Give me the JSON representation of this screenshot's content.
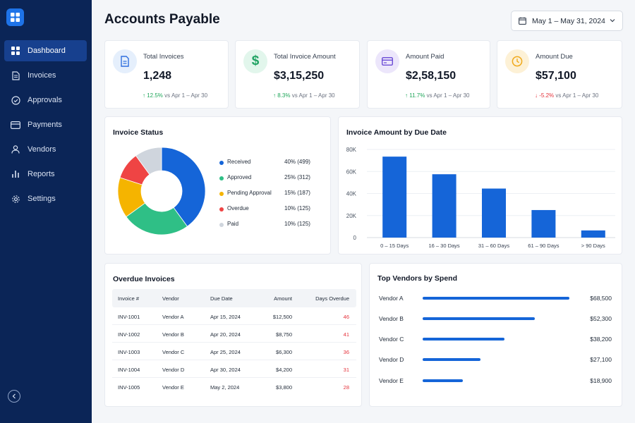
{
  "sidebar": {
    "items": [
      {
        "label": "Dashboard",
        "icon": "dashboard-grid-icon",
        "active": true
      },
      {
        "label": "Invoices",
        "icon": "invoice-icon"
      },
      {
        "label": "Approvals",
        "icon": "check-circle-icon"
      },
      {
        "label": "Payments",
        "icon": "credit-card-icon"
      },
      {
        "label": "Vendors",
        "icon": "user-icon"
      },
      {
        "label": "Reports",
        "icon": "bar-chart-icon"
      },
      {
        "label": "Settings",
        "icon": "gear-icon"
      }
    ]
  },
  "header": {
    "title": "Accounts Payable",
    "date_range": "May 1 – May 31, 2024"
  },
  "kpis": [
    {
      "label": "Total Invoices",
      "value": "1,248",
      "delta": "12.5%",
      "direction": "up",
      "comparison": "vs Apr 1 – Apr 30",
      "icon": "document-icon",
      "color": "#2f6fde"
    },
    {
      "label": "Total Invoice Amount",
      "value": "$3,15,250",
      "delta": "8.3%",
      "direction": "up",
      "comparison": "vs Apr 1 – Apr 30",
      "icon": "dollar-icon",
      "color": "#21a363"
    },
    {
      "label": "Amount Paid",
      "value": "$2,58,150",
      "delta": "11.7%",
      "direction": "up",
      "comparison": "vs Apr 1 – Apr 30",
      "icon": "credit-card-icon",
      "color": "#6c4cd6"
    },
    {
      "label": "Amount Due",
      "value": "$57,100",
      "delta": "-5.2%",
      "direction": "down",
      "comparison": "vs Apr 1 – Apr 30",
      "icon": "clock-icon",
      "color": "#f0a91a"
    }
  ],
  "invoice_status": {
    "title": "Invoice Status",
    "items": [
      {
        "label": "Received",
        "pct": "40%",
        "count": "(499)",
        "color": "#1565d8"
      },
      {
        "label": "Approved",
        "pct": "25%",
        "count": "(312)",
        "color": "#2fbf86"
      },
      {
        "label": "Pending Approval",
        "pct": "15%",
        "count": "(187)",
        "color": "#f5b400"
      },
      {
        "label": "Overdue",
        "pct": "10%",
        "count": "(125)",
        "color": "#ef4444"
      },
      {
        "label": "Paid",
        "pct": "10%",
        "count": "(125)",
        "color": "#cfd5dd"
      }
    ]
  },
  "chart_data": {
    "type": "bar",
    "title": "Invoice Amount by Due Date",
    "categories": [
      "0 – 15 Days",
      "16 – 30 Days",
      "31 – 60 Days",
      "61 – 90 Days",
      "> 90 Days"
    ],
    "values": [
      73500,
      57500,
      44500,
      25000,
      6500
    ],
    "ylim": [
      0,
      80000
    ],
    "yticks": [
      "0",
      "20K",
      "40K",
      "60K",
      "80K"
    ],
    "ytick_values": [
      0,
      20000,
      40000,
      60000,
      80000
    ],
    "xlabel": "",
    "ylabel": "",
    "grid": true,
    "color": "#1565d8"
  },
  "overdue": {
    "title": "Overdue Invoices",
    "columns": [
      "Invoice #",
      "Vendor",
      "Due Date",
      "Amount",
      "Days Overdue"
    ],
    "rows": [
      [
        "INV-1001",
        "Vendor A",
        "Apr 15, 2024",
        "$12,500",
        "46"
      ],
      [
        "INV-1002",
        "Vendor B",
        "Apr 20, 2024",
        "$8,750",
        "41"
      ],
      [
        "INV-1003",
        "Vendor C",
        "Apr 25, 2024",
        "$6,300",
        "36"
      ],
      [
        "INV-1004",
        "Vendor D",
        "Apr 30, 2024",
        "$4,200",
        "31"
      ],
      [
        "INV-1005",
        "Vendor E",
        "May 2, 2024",
        "$3,800",
        "28"
      ]
    ]
  },
  "top_vendors": {
    "title": "Top Vendors by Spend",
    "vendors": [
      {
        "name": "Vendor A",
        "amount": "$68,500",
        "value": 68500
      },
      {
        "name": "Vendor B",
        "amount": "$52,300",
        "value": 52300
      },
      {
        "name": "Vendor C",
        "amount": "$38,200",
        "value": 38200
      },
      {
        "name": "Vendor D",
        "amount": "$27,100",
        "value": 27100
      },
      {
        "name": "Vendor E",
        "amount": "$18,900",
        "value": 18900
      }
    ]
  }
}
